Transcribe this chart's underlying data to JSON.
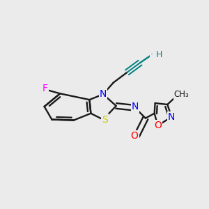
{
  "background_color": "#ebebeb",
  "bond_color": "#1a1a1a",
  "atom_colors": {
    "N": "#0000ff",
    "S": "#cccc00",
    "O": "#ff0000",
    "F": "#ff00ff",
    "C_alkyne": "#008080"
  },
  "figsize": [
    3.0,
    3.0
  ],
  "dpi": 100
}
